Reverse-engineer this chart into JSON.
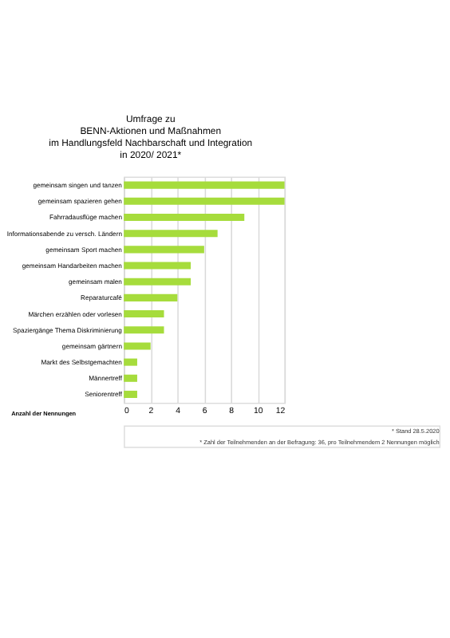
{
  "chart_data": {
    "type": "bar",
    "orientation": "horizontal",
    "title": [
      "Umfrage zu",
      "BENN-Aktionen und Maßnahmen",
      "im Handlungsfeld Nachbarschaft und Integration",
      "in 2020/ 2021*"
    ],
    "categories": [
      "gemeinsam singen und tanzen",
      "gemeinsam spazieren gehen",
      "Fahrradausflüge machen",
      "Informationsabende zu versch. Ländern",
      "gemeinsam Sport machen",
      "gemeinsam Handarbeiten machen",
      "gemeinsam malen",
      "Reparaturcafé",
      "Märchen erzählen oder vorlesen",
      "Spaziergänge Thema Diskriminierung",
      "gemeinsam gärtnern",
      "Markt des Selbstgemachten",
      "Männertreff",
      "Seniorentreff"
    ],
    "values": [
      12,
      12,
      9,
      7,
      6,
      5,
      5,
      4,
      3,
      3,
      2,
      1,
      1,
      1
    ],
    "color": "#a6dc3c",
    "xlabel": "Anzahl der Nennungen",
    "xlim": [
      0,
      12
    ],
    "xticks": [
      0,
      2,
      4,
      6,
      8,
      10,
      12
    ],
    "grid": "x",
    "annotations": [
      "* Stand 28.5.2020",
      "* Zahl der Teilnehmenden an der Befragung: 36, pro Teilnehmendem 2 Nennungen möglich"
    ]
  }
}
